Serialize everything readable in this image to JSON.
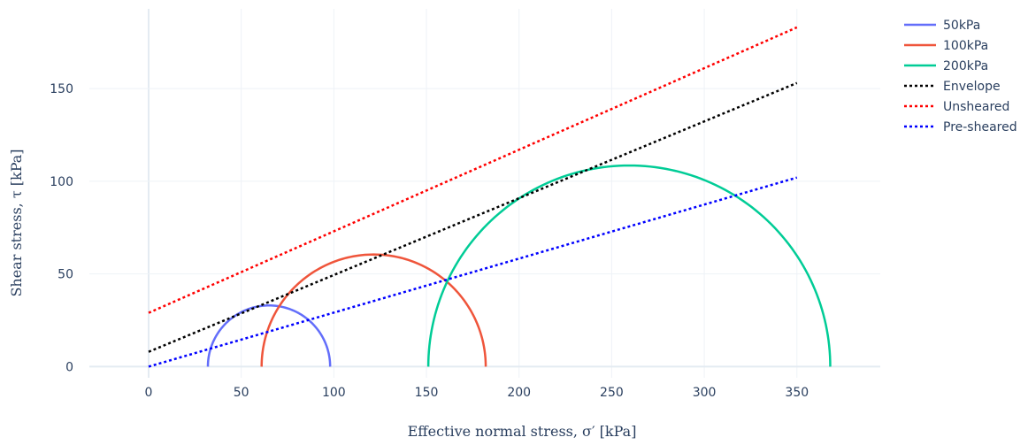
{
  "chart_data": {
    "type": "line",
    "title": "",
    "xlabel": "Effective normal stress, σ′ [kPa]",
    "ylabel": "Shear stress, τ [kPa]",
    "xlim": [
      -32,
      395
    ],
    "ylim": [
      -6,
      193
    ],
    "x_ticks": [
      0,
      50,
      100,
      150,
      200,
      250,
      300,
      350
    ],
    "y_ticks": [
      0,
      50,
      100,
      150
    ],
    "grid": true,
    "legend_position": "top-right",
    "circles": [
      {
        "name": "50kPa",
        "color": "#636efa",
        "sigma3": 32,
        "sigma1": 98
      },
      {
        "name": "100kPa",
        "color": "#ef553b",
        "sigma3": 61,
        "sigma1": 182
      },
      {
        "name": "200kPa",
        "color": "#00cc96",
        "sigma3": 151,
        "sigma1": 368
      }
    ],
    "lines": [
      {
        "name": "Envelope",
        "color": "#000000",
        "x": [
          0,
          350
        ],
        "y": [
          8,
          153
        ]
      },
      {
        "name": "Unsheared",
        "color": "#ff0000",
        "x": [
          0,
          350
        ],
        "y": [
          29,
          183
        ]
      },
      {
        "name": "Pre-sheared",
        "color": "#0000ff",
        "x": [
          0,
          350
        ],
        "y": [
          0,
          102
        ]
      }
    ]
  }
}
